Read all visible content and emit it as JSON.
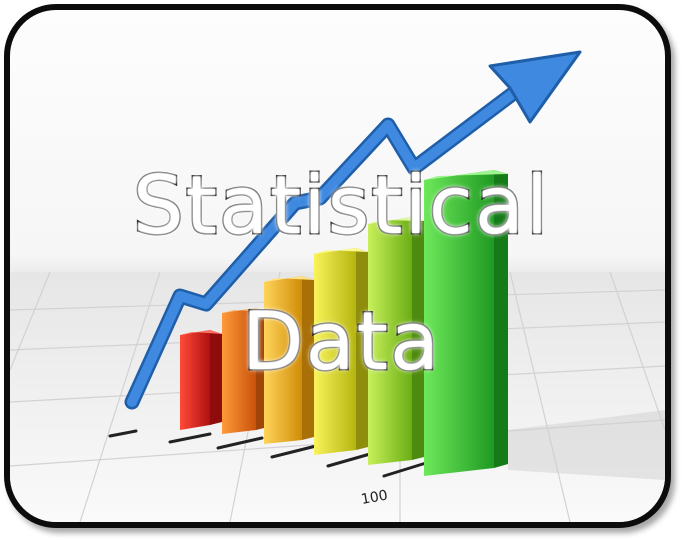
{
  "title": {
    "line1": "Statistical",
    "line2": "Data"
  },
  "axis_label": "100",
  "colors": {
    "frame": "#0c0c0c",
    "arrow": "#3a7fd6",
    "bars": [
      "#d81e1e",
      "#ee6a10",
      "#f4b21a",
      "#d8d820",
      "#9fd624",
      "#3cc43a"
    ]
  }
}
